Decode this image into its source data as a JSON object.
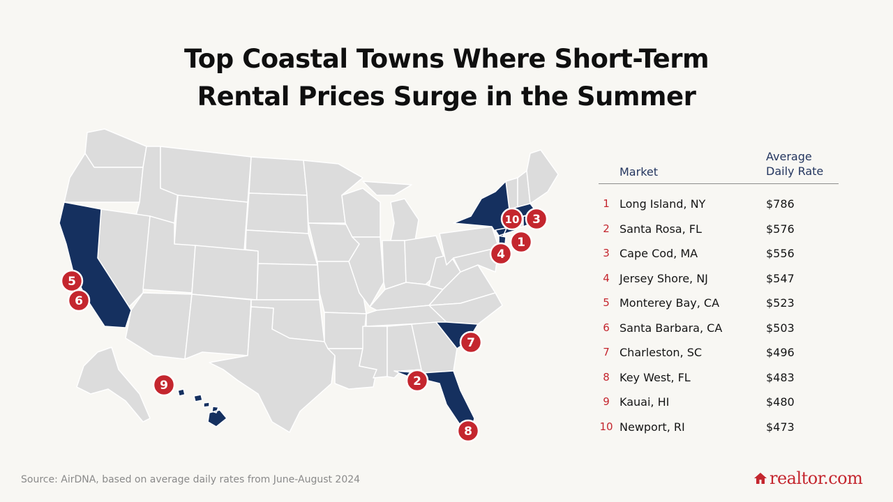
{
  "title": {
    "line1": "Top Coastal Towns Where Short-Term",
    "line2": "Rental Prices Surge in the Summer"
  },
  "table": {
    "header_market": "Market",
    "header_rate_line1": "Average",
    "header_rate_line2": "Daily Rate",
    "rows": [
      {
        "rank": "1",
        "market": "Long Island, NY",
        "rate": "$786"
      },
      {
        "rank": "2",
        "market": "Santa Rosa, FL",
        "rate": "$576"
      },
      {
        "rank": "3",
        "market": "Cape Cod, MA",
        "rate": "$556"
      },
      {
        "rank": "4",
        "market": "Jersey Shore, NJ",
        "rate": "$547"
      },
      {
        "rank": "5",
        "market": "Monterey Bay, CA",
        "rate": "$523"
      },
      {
        "rank": "6",
        "market": "Santa Barbara, CA",
        "rate": "$503"
      },
      {
        "rank": "7",
        "market": "Charleston, SC",
        "rate": "$496"
      },
      {
        "rank": "8",
        "market": "Key West, FL",
        "rate": "$483"
      },
      {
        "rank": "9",
        "market": "Kauai, HI",
        "rate": "$480"
      },
      {
        "rank": "10",
        "market": "Newport, RI",
        "rate": "$473"
      }
    ]
  },
  "map": {
    "markers": [
      "1",
      "2",
      "3",
      "4",
      "5",
      "6",
      "7",
      "8",
      "9",
      "10"
    ],
    "highlighted_states": [
      "CA",
      "NY",
      "SC",
      "FL",
      "HI",
      "MA",
      "RI",
      "NJ"
    ]
  },
  "source": "Source: AirDNA, based on average daily rates from June-August 2024",
  "logo": "realtor.com",
  "colors": {
    "background": "#f8f7f3",
    "highlight": "#15305f",
    "base_state": "#dcdcdc",
    "marker": "#c4262e",
    "header_text": "#24365f"
  },
  "icons": {
    "logo_icon": "house-icon"
  }
}
